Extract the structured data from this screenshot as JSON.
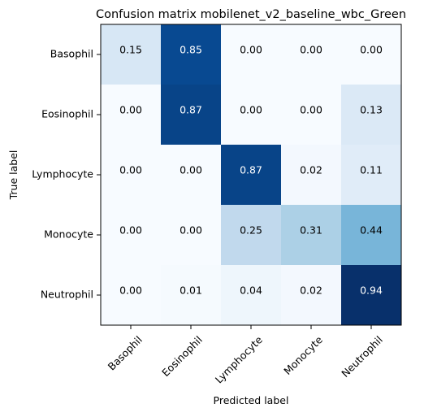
{
  "chart_data": {
    "type": "heatmap",
    "title": "Confusion matrix mobilenet_v2_baseline_wbc_Green",
    "xlabel": "Predicted label",
    "ylabel": "True label",
    "x_categories": [
      "Basophil",
      "Eosinophil",
      "Lymphocyte",
      "Monocyte",
      "Neutrophil"
    ],
    "y_categories": [
      "Basophil",
      "Eosinophil",
      "Lymphocyte",
      "Monocyte",
      "Neutrophil"
    ],
    "values": [
      [
        0.15,
        0.85,
        0.0,
        0.0,
        0.0
      ],
      [
        0.0,
        0.87,
        0.0,
        0.0,
        0.13
      ],
      [
        0.0,
        0.0,
        0.87,
        0.02,
        0.11
      ],
      [
        0.0,
        0.0,
        0.25,
        0.31,
        0.44
      ],
      [
        0.0,
        0.01,
        0.04,
        0.02,
        0.94
      ]
    ],
    "value_range": [
      0,
      0.94
    ],
    "colormap": "Blues",
    "grid": false
  }
}
